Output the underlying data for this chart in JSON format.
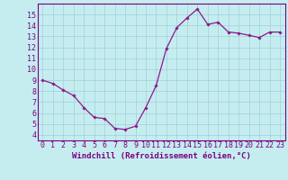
{
  "x": [
    0,
    1,
    2,
    3,
    4,
    5,
    6,
    7,
    8,
    9,
    10,
    11,
    12,
    13,
    14,
    15,
    16,
    17,
    18,
    19,
    20,
    21,
    22,
    23
  ],
  "y": [
    9.0,
    8.7,
    8.1,
    7.6,
    6.5,
    5.6,
    5.5,
    4.6,
    4.5,
    4.8,
    6.5,
    8.5,
    11.9,
    13.8,
    14.7,
    15.5,
    14.1,
    14.3,
    13.4,
    13.3,
    13.1,
    12.9,
    13.4,
    13.4
  ],
  "line_color": "#8b1a8b",
  "marker": "D",
  "marker_size": 1.8,
  "line_width": 0.9,
  "bg_color": "#c5edf0",
  "grid_color": "#a0cfd8",
  "xlabel": "Windchill (Refroidissement éolien,°C)",
  "xlabel_fontsize": 6.5,
  "xlim": [
    -0.5,
    23.5
  ],
  "ylim": [
    3.5,
    16.0
  ],
  "yticks": [
    4,
    5,
    6,
    7,
    8,
    9,
    10,
    11,
    12,
    13,
    14,
    15
  ],
  "xticks": [
    0,
    1,
    2,
    3,
    4,
    5,
    6,
    7,
    8,
    9,
    10,
    11,
    12,
    13,
    14,
    15,
    16,
    17,
    18,
    19,
    20,
    21,
    22,
    23
  ],
  "tick_fontsize": 6.0,
  "axis_color": "#7b0080",
  "spine_color": "#7b0080",
  "xlabel_color": "#7b0080"
}
